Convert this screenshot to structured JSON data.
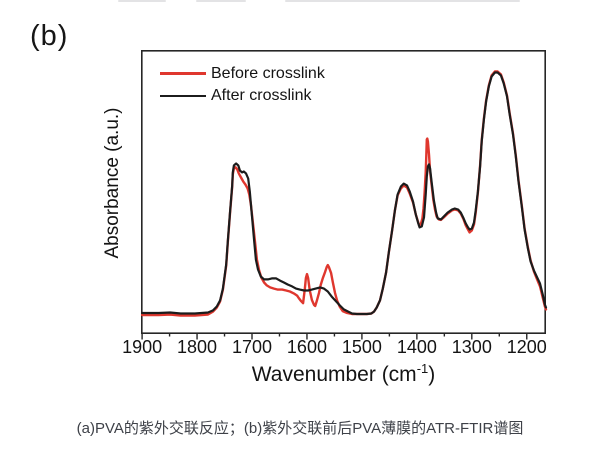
{
  "figure": {
    "panel_label": "(b)",
    "caption": "(a)PVA的紫外交联反应；(b)紫外交联前后PVA薄膜的ATR-FTIR谱图"
  },
  "colors": {
    "before_crosslink": "#df372e",
    "after_crosslink": "#1c1c1c",
    "axis": "#262626",
    "text": "#141414",
    "caption_text": "#3e4148"
  },
  "chart_data": {
    "type": "line",
    "title": "",
    "xlabel": "Wavenumber (cm-1)",
    "xlabel_parts": {
      "base": "Wavenumber (cm",
      "sup": "-1",
      "close": ")"
    },
    "ylabel": "Absorbance (a.u.)",
    "x_axis_reversed": true,
    "x_range": [
      1902,
      1165
    ],
    "ylim_au": [
      -0.08,
      1.09
    ],
    "grid": false,
    "legend_position": "top-left-inside",
    "x_ticks": [
      1900,
      1800,
      1700,
      1600,
      1500,
      1400,
      1300,
      1200
    ],
    "x_minor_ticks": [
      1850,
      1750,
      1650,
      1550,
      1450,
      1350,
      1250
    ],
    "legend": [
      {
        "name": "Before crosslink",
        "color": "#df372e"
      },
      {
        "name": "After crosslink",
        "color": "#1c1c1c"
      }
    ],
    "series": [
      {
        "name": "Before crosslink",
        "color": "#df372e",
        "width": 2.4,
        "points": [
          [
            1900,
            -0.004
          ],
          [
            1870,
            -0.004
          ],
          [
            1849,
            -0.002
          ],
          [
            1830,
            -0.006
          ],
          [
            1804,
            -0.006
          ],
          [
            1780,
            -0.002
          ],
          [
            1771,
            0.01
          ],
          [
            1764,
            0.027
          ],
          [
            1758,
            0.052
          ],
          [
            1753,
            0.101
          ],
          [
            1747,
            0.2
          ],
          [
            1744,
            0.296
          ],
          [
            1740,
            0.415
          ],
          [
            1736,
            0.527
          ],
          [
            1735,
            0.577
          ],
          [
            1733,
            0.602
          ],
          [
            1730,
            0.606
          ],
          [
            1727,
            0.598
          ],
          [
            1724,
            0.581
          ],
          [
            1720,
            0.564
          ],
          [
            1716,
            0.548
          ],
          [
            1712,
            0.535
          ],
          [
            1708,
            0.519
          ],
          [
            1705,
            0.494
          ],
          [
            1702,
            0.452
          ],
          [
            1698,
            0.37
          ],
          [
            1694,
            0.287
          ],
          [
            1691,
            0.225
          ],
          [
            1687,
            0.18
          ],
          [
            1683,
            0.151
          ],
          [
            1678,
            0.13
          ],
          [
            1673,
            0.118
          ],
          [
            1667,
            0.11
          ],
          [
            1660,
            0.105
          ],
          [
            1653,
            0.101
          ],
          [
            1645,
            0.101
          ],
          [
            1638,
            0.097
          ],
          [
            1631,
            0.093
          ],
          [
            1624,
            0.085
          ],
          [
            1618,
            0.076
          ],
          [
            1615,
            0.066
          ],
          [
            1611,
            0.054
          ],
          [
            1607,
            0.045
          ],
          [
            1604,
            0.103
          ],
          [
            1602,
            0.149
          ],
          [
            1600,
            0.165
          ],
          [
            1598,
            0.149
          ],
          [
            1595,
            0.099
          ],
          [
            1591,
            0.058
          ],
          [
            1587,
            0.037
          ],
          [
            1585,
            0.033
          ],
          [
            1582,
            0.054
          ],
          [
            1578,
            0.087
          ],
          [
            1575,
            0.12
          ],
          [
            1571,
            0.149
          ],
          [
            1567,
            0.174
          ],
          [
            1564,
            0.194
          ],
          [
            1562,
            0.202
          ],
          [
            1560,
            0.194
          ],
          [
            1556,
            0.169
          ],
          [
            1553,
            0.132
          ],
          [
            1549,
            0.087
          ],
          [
            1545,
            0.054
          ],
          [
            1540,
            0.029
          ],
          [
            1535,
            0.012
          ],
          [
            1527,
            0.004
          ],
          [
            1518,
            0.0
          ],
          [
            1509,
            0.0
          ],
          [
            1500,
            0.0
          ],
          [
            1491,
            0.0
          ],
          [
            1483,
            0.002
          ],
          [
            1478,
            0.01
          ],
          [
            1473,
            0.027
          ],
          [
            1467,
            0.056
          ],
          [
            1462,
            0.105
          ],
          [
            1456,
            0.172
          ],
          [
            1451,
            0.254
          ],
          [
            1445,
            0.345
          ],
          [
            1440,
            0.428
          ],
          [
            1435,
            0.49
          ],
          [
            1429,
            0.519
          ],
          [
            1424,
            0.531
          ],
          [
            1418,
            0.523
          ],
          [
            1413,
            0.498
          ],
          [
            1407,
            0.461
          ],
          [
            1402,
            0.411
          ],
          [
            1398,
            0.382
          ],
          [
            1396,
            0.366
          ],
          [
            1393,
            0.37
          ],
          [
            1390,
            0.395
          ],
          [
            1388,
            0.436
          ],
          [
            1386,
            0.502
          ],
          [
            1384,
            0.585
          ],
          [
            1383,
            0.643
          ],
          [
            1382,
            0.721
          ],
          [
            1381,
            0.725
          ],
          [
            1380,
            0.713
          ],
          [
            1378,
            0.659
          ],
          [
            1376,
            0.589
          ],
          [
            1373,
            0.531
          ],
          [
            1370,
            0.473
          ],
          [
            1367,
            0.432
          ],
          [
            1364,
            0.403
          ],
          [
            1360,
            0.391
          ],
          [
            1356,
            0.389
          ],
          [
            1351,
            0.399
          ],
          [
            1344,
            0.415
          ],
          [
            1336,
            0.428
          ],
          [
            1331,
            0.432
          ],
          [
            1325,
            0.428
          ],
          [
            1320,
            0.415
          ],
          [
            1315,
            0.391
          ],
          [
            1311,
            0.366
          ],
          [
            1307,
            0.349
          ],
          [
            1304,
            0.337
          ],
          [
            1300,
            0.345
          ],
          [
            1296,
            0.37
          ],
          [
            1293,
            0.419
          ],
          [
            1289,
            0.502
          ],
          [
            1285,
            0.614
          ],
          [
            1282,
            0.717
          ],
          [
            1278,
            0.808
          ],
          [
            1274,
            0.882
          ],
          [
            1269,
            0.944
          ],
          [
            1264,
            0.986
          ],
          [
            1258,
            1.002
          ],
          [
            1253,
            1.002
          ],
          [
            1247,
            0.99
          ],
          [
            1242,
            0.957
          ],
          [
            1236,
            0.903
          ],
          [
            1231,
            0.828
          ],
          [
            1225,
            0.746
          ],
          [
            1220,
            0.655
          ],
          [
            1215,
            0.552
          ],
          [
            1209,
            0.448
          ],
          [
            1204,
            0.353
          ],
          [
            1198,
            0.275
          ],
          [
            1193,
            0.221
          ],
          [
            1187,
            0.176
          ],
          [
            1182,
            0.147
          ],
          [
            1176,
            0.114
          ],
          [
            1171,
            0.068
          ],
          [
            1167,
            0.031
          ],
          [
            1165,
            0.019
          ]
        ]
      },
      {
        "name": "After crosslink",
        "color": "#1c1c1c",
        "width": 2.2,
        "points": [
          [
            1900,
            0.004
          ],
          [
            1870,
            0.004
          ],
          [
            1849,
            0.006
          ],
          [
            1830,
            0.002
          ],
          [
            1804,
            0.002
          ],
          [
            1780,
            0.006
          ],
          [
            1771,
            0.015
          ],
          [
            1764,
            0.031
          ],
          [
            1758,
            0.056
          ],
          [
            1753,
            0.105
          ],
          [
            1747,
            0.205
          ],
          [
            1744,
            0.3
          ],
          [
            1740,
            0.419
          ],
          [
            1736,
            0.531
          ],
          [
            1735,
            0.585
          ],
          [
            1733,
            0.614
          ],
          [
            1729,
            0.622
          ],
          [
            1725,
            0.614
          ],
          [
            1722,
            0.593
          ],
          [
            1718,
            0.585
          ],
          [
            1715,
            0.589
          ],
          [
            1711,
            0.581
          ],
          [
            1707,
            0.56
          ],
          [
            1704,
            0.506
          ],
          [
            1700,
            0.403
          ],
          [
            1696,
            0.3
          ],
          [
            1693,
            0.225
          ],
          [
            1689,
            0.184
          ],
          [
            1684,
            0.155
          ],
          [
            1678,
            0.143
          ],
          [
            1671,
            0.143
          ],
          [
            1664,
            0.147
          ],
          [
            1656,
            0.147
          ],
          [
            1649,
            0.138
          ],
          [
            1642,
            0.13
          ],
          [
            1635,
            0.122
          ],
          [
            1627,
            0.114
          ],
          [
            1620,
            0.105
          ],
          [
            1613,
            0.101
          ],
          [
            1605,
            0.097
          ],
          [
            1598,
            0.097
          ],
          [
            1591,
            0.101
          ],
          [
            1584,
            0.105
          ],
          [
            1576,
            0.11
          ],
          [
            1569,
            0.105
          ],
          [
            1562,
            0.093
          ],
          [
            1555,
            0.072
          ],
          [
            1547,
            0.052
          ],
          [
            1540,
            0.035
          ],
          [
            1533,
            0.019
          ],
          [
            1525,
            0.01
          ],
          [
            1518,
            0.002
          ],
          [
            1509,
            0.0
          ],
          [
            1500,
            0.0
          ],
          [
            1491,
            0.0
          ],
          [
            1483,
            0.002
          ],
          [
            1478,
            0.01
          ],
          [
            1473,
            0.027
          ],
          [
            1467,
            0.056
          ],
          [
            1462,
            0.105
          ],
          [
            1456,
            0.172
          ],
          [
            1451,
            0.254
          ],
          [
            1445,
            0.345
          ],
          [
            1440,
            0.428
          ],
          [
            1435,
            0.494
          ],
          [
            1429,
            0.527
          ],
          [
            1424,
            0.539
          ],
          [
            1418,
            0.531
          ],
          [
            1413,
            0.506
          ],
          [
            1407,
            0.465
          ],
          [
            1402,
            0.411
          ],
          [
            1398,
            0.378
          ],
          [
            1395,
            0.358
          ],
          [
            1391,
            0.362
          ],
          [
            1387,
            0.399
          ],
          [
            1384,
            0.494
          ],
          [
            1382,
            0.568
          ],
          [
            1380,
            0.61
          ],
          [
            1378,
            0.618
          ],
          [
            1376,
            0.601
          ],
          [
            1373,
            0.543
          ],
          [
            1369,
            0.469
          ],
          [
            1365,
            0.419
          ],
          [
            1362,
            0.395
          ],
          [
            1356,
            0.391
          ],
          [
            1351,
            0.403
          ],
          [
            1344,
            0.419
          ],
          [
            1336,
            0.432
          ],
          [
            1331,
            0.436
          ],
          [
            1325,
            0.432
          ],
          [
            1320,
            0.419
          ],
          [
            1315,
            0.395
          ],
          [
            1311,
            0.374
          ],
          [
            1307,
            0.358
          ],
          [
            1304,
            0.349
          ],
          [
            1300,
            0.353
          ],
          [
            1296,
            0.378
          ],
          [
            1293,
            0.428
          ],
          [
            1289,
            0.506
          ],
          [
            1285,
            0.61
          ],
          [
            1282,
            0.713
          ],
          [
            1278,
            0.804
          ],
          [
            1274,
            0.878
          ],
          [
            1269,
            0.94
          ],
          [
            1264,
            0.981
          ],
          [
            1258,
            0.998
          ],
          [
            1253,
            0.998
          ],
          [
            1247,
            0.986
          ],
          [
            1242,
            0.953
          ],
          [
            1236,
            0.899
          ],
          [
            1231,
            0.824
          ],
          [
            1225,
            0.742
          ],
          [
            1220,
            0.651
          ],
          [
            1215,
            0.548
          ],
          [
            1209,
            0.444
          ],
          [
            1204,
            0.349
          ],
          [
            1198,
            0.271
          ],
          [
            1193,
            0.217
          ],
          [
            1187,
            0.18
          ],
          [
            1182,
            0.155
          ],
          [
            1176,
            0.126
          ],
          [
            1171,
            0.081
          ],
          [
            1167,
            0.039
          ],
          [
            1165,
            0.027
          ]
        ]
      }
    ]
  }
}
